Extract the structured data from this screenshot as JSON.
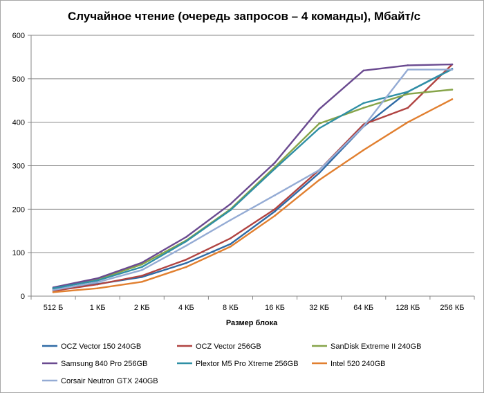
{
  "chart_data": {
    "type": "line",
    "title": "Случайное чтение (очередь запросов – 4 команды), Мбайт/с",
    "xlabel": "Размер блока",
    "ylabel": "",
    "categories": [
      "512 Б",
      "1 КБ",
      "2 КБ",
      "4 КБ",
      "8 КБ",
      "16 КБ",
      "32 КБ",
      "64 КБ",
      "128 КБ",
      "256 КБ"
    ],
    "ylim": [
      0,
      600
    ],
    "yticks": [
      0,
      100,
      200,
      300,
      400,
      500,
      600
    ],
    "grid": "horizontal",
    "legend_position": "bottom",
    "series": [
      {
        "name": "OCZ Vector 150 240GB",
        "color": "#2e6aa5",
        "values": [
          16,
          28,
          44,
          76,
          120,
          195,
          283,
          390,
          470,
          523
        ]
      },
      {
        "name": "OCZ Vector 256GB",
        "color": "#b04341",
        "values": [
          12,
          27,
          47,
          84,
          133,
          200,
          290,
          395,
          433,
          533
        ]
      },
      {
        "name": "SanDisk Extreme II 240GB",
        "color": "#86a449",
        "values": [
          18,
          38,
          73,
          128,
          200,
          297,
          397,
          433,
          465,
          475
        ]
      },
      {
        "name": "Samsung 840 Pro 256GB",
        "color": "#6a4a90",
        "values": [
          20,
          41,
          77,
          136,
          212,
          307,
          430,
          519,
          531,
          533
        ]
      },
      {
        "name": "Plextor M5 Pro Xtreme 256GB",
        "color": "#2f8fa5",
        "values": [
          18,
          36,
          67,
          126,
          198,
          293,
          386,
          444,
          470,
          522
        ]
      },
      {
        "name": "Intel 520 240GB",
        "color": "#e17f2f",
        "values": [
          9,
          18,
          33,
          67,
          114,
          185,
          267,
          336,
          400,
          453
        ]
      },
      {
        "name": "Corsair Neutron GTX 240GB",
        "color": "#94abd4",
        "values": [
          14,
          32,
          60,
          116,
          175,
          232,
          290,
          390,
          521,
          521
        ]
      }
    ]
  }
}
